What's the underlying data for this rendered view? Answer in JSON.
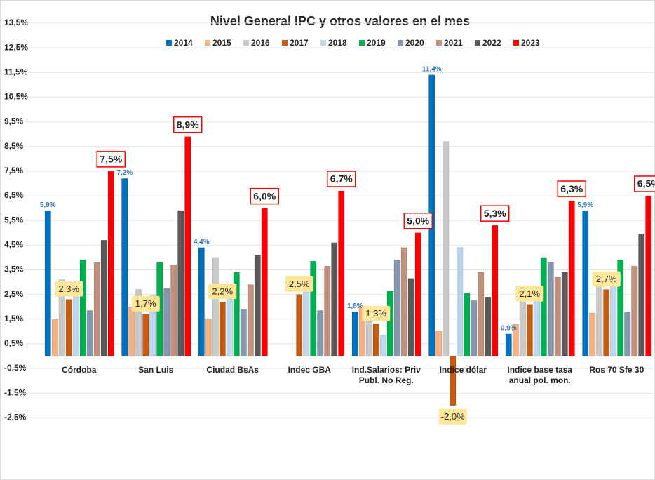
{
  "chart_data": {
    "type": "bar",
    "title": "Nivel General IPC y otros valores en el mes",
    "categories": [
      "Córdoba",
      "San Luis",
      "Ciudad BsAs",
      "Indec  GBA",
      "Ind.Salarios: Priv Publ. No Reg.",
      "Indice dólar",
      "Indice base tasa anual pol. mon.",
      "Ros 70 Sfe 30"
    ],
    "series": [
      {
        "name": "2014",
        "color": "#0070c0",
        "values": [
          5.9,
          7.2,
          4.4,
          null,
          1.8,
          11.4,
          0.9,
          5.9
        ],
        "value_labels": [
          "5,9%",
          "7,2%",
          "4,4%",
          null,
          "1,8%",
          "11,4%",
          "0,9%",
          "5,9%"
        ]
      },
      {
        "name": "2015",
        "color": "#f4b183",
        "values": [
          1.5,
          2.0,
          1.5,
          null,
          2.0,
          1.0,
          1.3,
          1.75
        ]
      },
      {
        "name": "2016",
        "color": "#c9c9c9",
        "values": [
          3.1,
          2.7,
          4.0,
          null,
          1.4,
          8.7,
          2.3,
          3.0
        ]
      },
      {
        "name": "2017",
        "color": "#c55a11",
        "values": [
          2.3,
          1.7,
          2.2,
          2.5,
          1.3,
          -2.0,
          2.1,
          2.7
        ],
        "value_labels": [
          "2,3%",
          "1,7%",
          "2,2%",
          "2,5%",
          "1,3%",
          "-2,0%",
          "2,1%",
          "2,7%"
        ]
      },
      {
        "name": "2018",
        "color": "#bdd7ee",
        "values": [
          2.6,
          2.45,
          2.5,
          2.6,
          0.85,
          4.4,
          2.3,
          3.0
        ]
      },
      {
        "name": "2019",
        "color": "#00b050",
        "values": [
          3.9,
          3.8,
          3.4,
          3.85,
          2.65,
          2.55,
          4.0,
          3.9
        ]
      },
      {
        "name": "2020",
        "color": "#8497b0",
        "values": [
          1.85,
          2.75,
          1.9,
          1.85,
          3.9,
          2.25,
          3.8,
          1.8
        ]
      },
      {
        "name": "2021",
        "color": "#c0907b",
        "values": [
          3.8,
          3.7,
          2.9,
          3.65,
          4.4,
          3.4,
          3.2,
          3.65
        ]
      },
      {
        "name": "2022",
        "color": "#595959",
        "values": [
          4.7,
          5.9,
          4.1,
          4.6,
          3.15,
          2.4,
          3.4,
          4.95
        ]
      },
      {
        "name": "2023",
        "color": "#ff0000",
        "values": [
          7.5,
          8.9,
          6.0,
          6.7,
          5.0,
          5.3,
          6.3,
          6.5
        ],
        "value_labels": [
          "7,5%",
          "8,9%",
          "6,0%",
          "6,7%",
          "5,0%",
          "5,3%",
          "6,3%",
          "6,5%"
        ]
      }
    ],
    "ylim": [
      -3.5,
      14
    ],
    "yticks": [
      {
        "value": 13.5,
        "label": "13,5%"
      },
      {
        "value": 12.5,
        "label": "12,5%"
      },
      {
        "value": 11.5,
        "label": "11,5%"
      },
      {
        "value": 10.5,
        "label": "10,5%"
      },
      {
        "value": 9.5,
        "label": "9,5%"
      },
      {
        "value": 8.5,
        "label": "8,5%"
      },
      {
        "value": 7.5,
        "label": "7,5%"
      },
      {
        "value": 6.5,
        "label": "6,5%"
      },
      {
        "value": 5.5,
        "label": "5,5%"
      },
      {
        "value": 4.5,
        "label": "4,5%"
      },
      {
        "value": 3.5,
        "label": "3,5%"
      },
      {
        "value": 2.5,
        "label": "2,5%"
      },
      {
        "value": 1.5,
        "label": "1,5%"
      },
      {
        "value": 0.5,
        "label": "0,5%"
      },
      {
        "value": -0.5,
        "label": "-0,5%"
      },
      {
        "value": -1.5,
        "label": "-1,5%"
      },
      {
        "value": -2.5,
        "label": "-2,5%"
      }
    ],
    "grid": true,
    "legend": "top"
  }
}
